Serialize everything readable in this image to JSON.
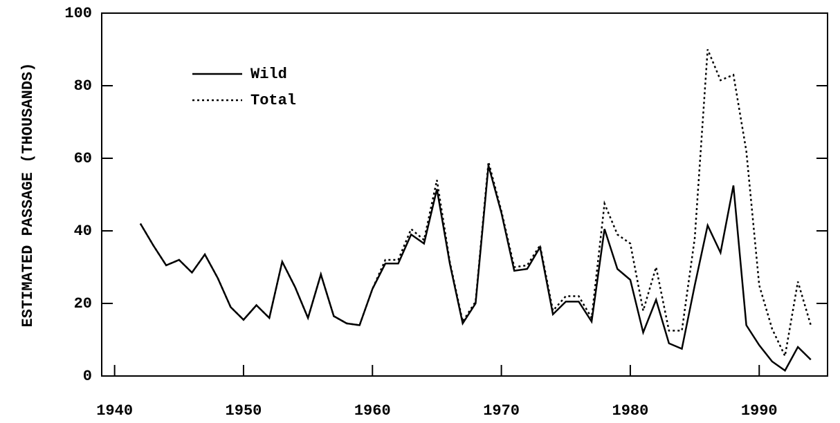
{
  "chart_data": {
    "type": "line",
    "y_label": "ESTIMATED PASSAGE (THOUSANDS)",
    "x": [
      1942,
      1943,
      1944,
      1945,
      1946,
      1947,
      1948,
      1949,
      1950,
      1951,
      1952,
      1953,
      1954,
      1955,
      1956,
      1957,
      1958,
      1959,
      1960,
      1961,
      1962,
      1963,
      1964,
      1965,
      1966,
      1967,
      1968,
      1969,
      1970,
      1971,
      1972,
      1973,
      1974,
      1975,
      1976,
      1977,
      1978,
      1979,
      1980,
      1981,
      1982,
      1983,
      1984,
      1985,
      1986,
      1987,
      1988,
      1989,
      1990,
      1991,
      1992,
      1993,
      1994
    ],
    "series": [
      {
        "name": "Wild",
        "color": "#000000",
        "dash": "solid",
        "values": [
          42,
          36,
          30.5,
          32,
          28.5,
          33.5,
          27,
          19,
          15.5,
          19.5,
          16,
          31.5,
          24.5,
          16,
          28,
          16.5,
          14.5,
          14,
          24,
          31,
          31,
          39,
          36.5,
          51.5,
          31,
          14.5,
          20,
          58,
          45,
          29,
          29.5,
          35.5,
          17,
          20.5,
          20.5,
          15,
          40.5,
          29.5,
          26.5,
          12,
          21,
          9,
          7.5,
          25,
          41.5,
          34,
          52.5,
          14,
          8.5,
          4,
          1.5,
          8,
          4.5
        ]
      },
      {
        "name": "Total",
        "color": "#000000",
        "dash": "dotted",
        "values": [
          42,
          36,
          30.5,
          32,
          28.5,
          33.5,
          27,
          19,
          15.5,
          19.5,
          16,
          31.5,
          24.5,
          16,
          28,
          16.5,
          14.5,
          14,
          24,
          32,
          32,
          40.5,
          37.5,
          54,
          31.5,
          15,
          20.5,
          59,
          45.5,
          30,
          30.5,
          36,
          18,
          22,
          22,
          16,
          47.5,
          39,
          36.5,
          18,
          30,
          12.5,
          12.5,
          38,
          90,
          81.5,
          83,
          62,
          25,
          13,
          5.5,
          26,
          14
        ]
      }
    ],
    "xlim": [
      1939,
      1995.3
    ],
    "xticks": [
      1940,
      1950,
      1960,
      1970,
      1980,
      1990
    ],
    "ylim": [
      0,
      100
    ],
    "yticks": [
      0,
      20,
      40,
      60,
      80,
      100
    ],
    "legend": "upper left"
  }
}
